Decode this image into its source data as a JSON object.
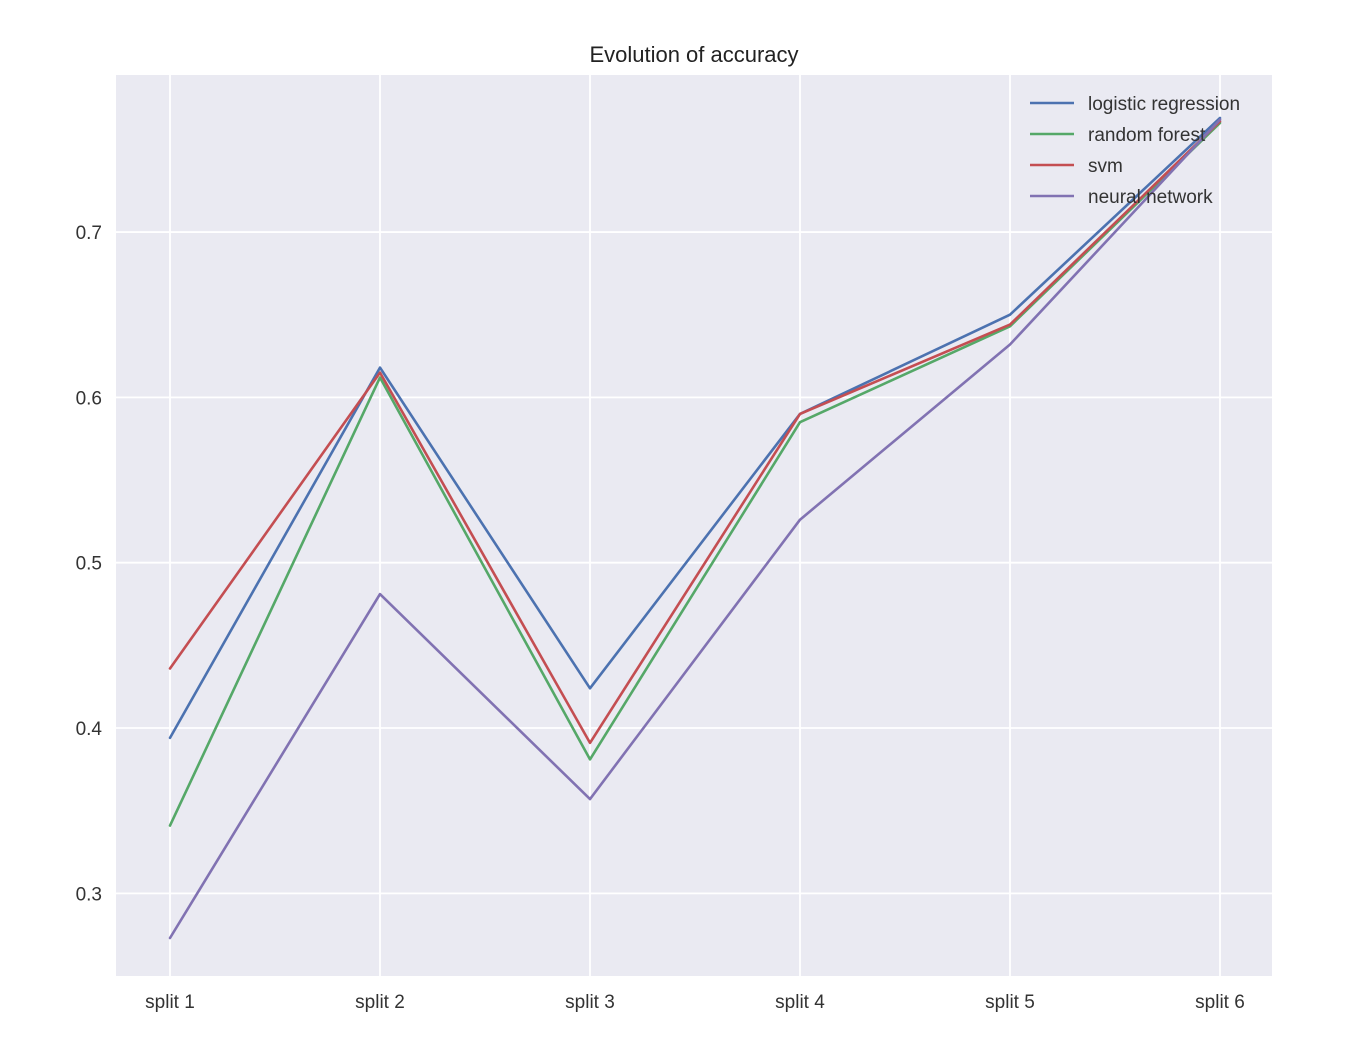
{
  "chart_data": {
    "type": "line",
    "title": "Evolution of accuracy",
    "xlabel": "",
    "ylabel": "",
    "categories": [
      "split 1",
      "split 2",
      "split 3",
      "split 4",
      "split 5",
      "split 6"
    ],
    "yticks": [
      0.3,
      0.4,
      0.5,
      0.6,
      0.7
    ],
    "ylim": [
      0.25,
      0.795
    ],
    "grid": true,
    "legend_position": "top-right",
    "background_color": "#eaeaf2",
    "series": [
      {
        "name": "logistic regression",
        "color": "#4c72b0",
        "values": [
          0.394,
          0.618,
          0.424,
          0.59,
          0.65,
          0.769
        ]
      },
      {
        "name": "random forest",
        "color": "#55a868",
        "values": [
          0.341,
          0.612,
          0.381,
          0.585,
          0.643,
          0.766
        ]
      },
      {
        "name": "svm",
        "color": "#c44e52",
        "values": [
          0.436,
          0.615,
          0.391,
          0.59,
          0.644,
          0.767
        ]
      },
      {
        "name": "neural network",
        "color": "#8172b2",
        "values": [
          0.273,
          0.481,
          0.357,
          0.526,
          0.632,
          0.768
        ]
      }
    ]
  }
}
